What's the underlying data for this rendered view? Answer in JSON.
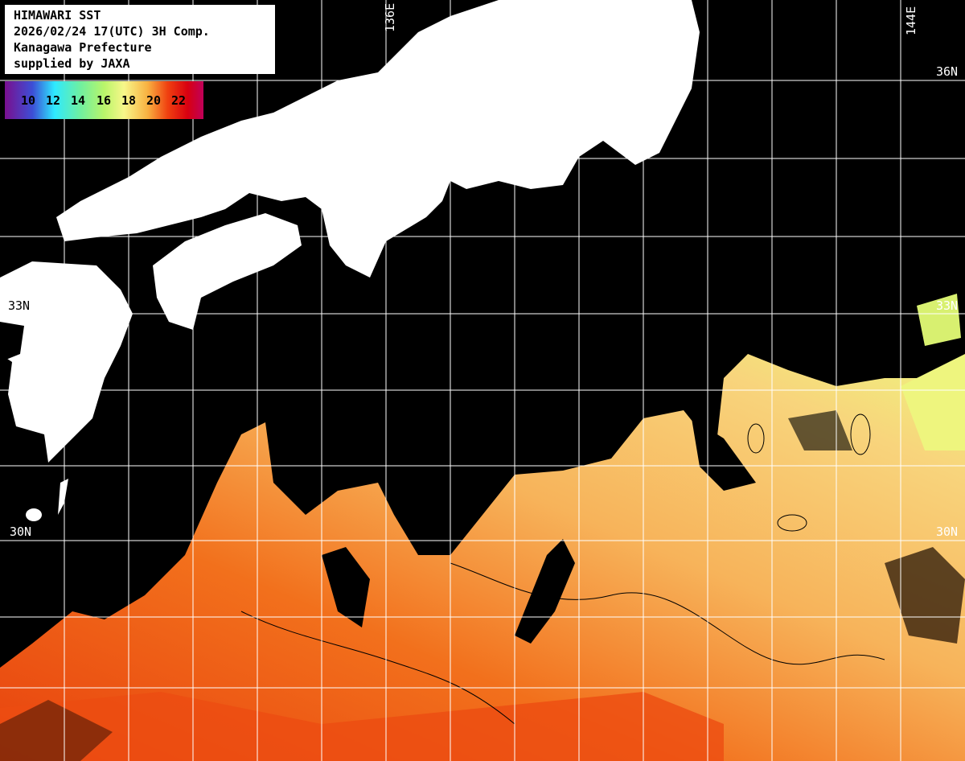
{
  "header": {
    "title": "HIMAWARI SST",
    "datetime": "2026/02/24 17(UTC) 3H Comp.",
    "region": "Kanagawa Prefecture",
    "credit": "supplied by JAXA"
  },
  "legend": {
    "ticks": [
      "10",
      "12",
      "14",
      "16",
      "18",
      "20",
      "22"
    ],
    "colors": [
      "#7a0f8f",
      "#3c4fd6",
      "#2ee9ff",
      "#6ff0a0",
      "#b9f56a",
      "#f7f78a",
      "#f8b040",
      "#f04010",
      "#d80010",
      "#c0005a"
    ]
  },
  "grid_labels": {
    "lon": [
      "136E",
      "144E"
    ],
    "lat_right": [
      "36N",
      "33N",
      "30N"
    ],
    "lat_left": [
      "33N",
      "30N"
    ]
  },
  "colors": {
    "land": "#ffffff",
    "no_data": "#000000",
    "grid": "#ffffff"
  }
}
